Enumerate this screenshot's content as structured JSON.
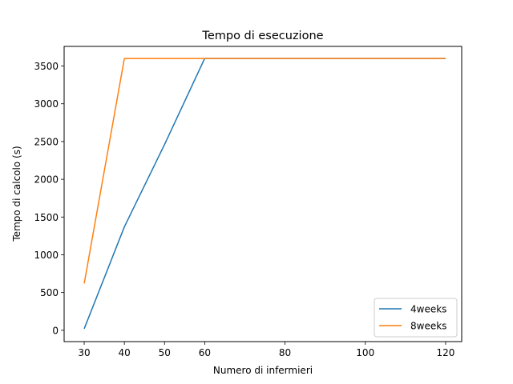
{
  "chart_data": {
    "type": "line",
    "title": "Tempo di esecuzione",
    "xlabel": "Numero di infermieri",
    "ylabel": "Tempo di calcolo (s)",
    "xlim": [
      25,
      124
    ],
    "ylim": [
      -150,
      3760
    ],
    "xticks": [
      30,
      40,
      50,
      60,
      80,
      100,
      120
    ],
    "yticks": [
      0,
      500,
      1000,
      1500,
      2000,
      2500,
      3000,
      3500
    ],
    "grid": false,
    "legend_position": "lower-right",
    "series": [
      {
        "name": "4weeks",
        "color": "#1f77b4",
        "x": [
          30,
          40,
          50,
          60,
          80,
          100,
          120
        ],
        "y": [
          20,
          1370,
          2460,
          3600,
          3600,
          3600,
          3600
        ]
      },
      {
        "name": "8weeks",
        "color": "#ff7f0e",
        "x": [
          30,
          40,
          50,
          60,
          80,
          100,
          120
        ],
        "y": [
          620,
          3600,
          3600,
          3600,
          3600,
          3600,
          3600
        ]
      }
    ]
  }
}
